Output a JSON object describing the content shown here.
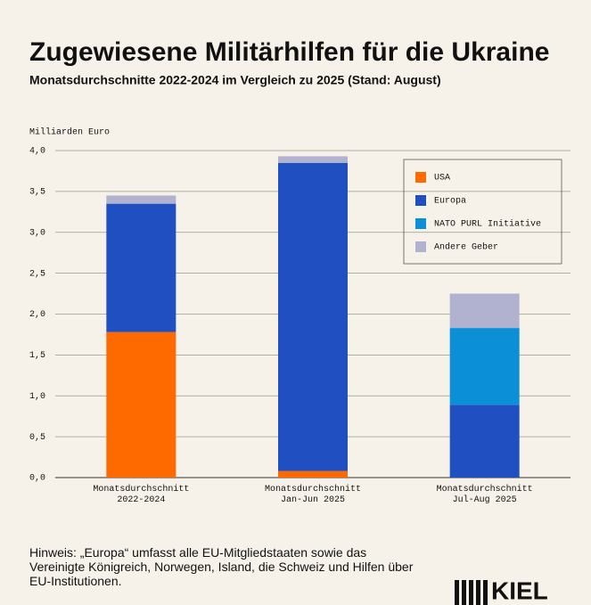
{
  "chart_data": {
    "type": "stacked_bar",
    "title": "Zugewiesene Militärhilfen für die Ukraine",
    "subtitle": "Monatsdurchschnitte 2022-2024 im Vergleich zu 2025 (Stand: August)",
    "y_label": "Milliarden Euro",
    "categories": [
      "Monatsdurchschnitt\n2022-2024",
      "Monatsdurchschnitt\nJan-Jun 2025",
      "Monatsdurchschnitt\nJul-Aug 2025"
    ],
    "series": [
      {
        "name": "USA",
        "color": "#ff6a00",
        "values": [
          1.78,
          0.08,
          0
        ]
      },
      {
        "name": "Europa",
        "color": "#1f4fc0",
        "values": [
          1.57,
          3.77,
          0.89
        ]
      },
      {
        "name": "NATO PURL Initiative",
        "color": "#0b8fd6",
        "values": [
          0,
          0,
          0.94
        ]
      },
      {
        "name": "Andere Geber",
        "color": "#b0b2cf",
        "values": [
          0.1,
          0.08,
          0.42
        ]
      }
    ],
    "ylim": [
      0,
      4
    ],
    "yticks": [
      {
        "value": 0,
        "label": "0,0"
      },
      {
        "value": 0.5,
        "label": "0,5"
      },
      {
        "value": 1,
        "label": "1,0"
      },
      {
        "value": 1.5,
        "label": "1,5"
      },
      {
        "value": 2,
        "label": "2,0"
      },
      {
        "value": 2.5,
        "label": "2,5"
      },
      {
        "value": 3,
        "label": "3,0"
      },
      {
        "value": 3.5,
        "label": "3,5"
      },
      {
        "value": 4,
        "label": "4,0"
      }
    ],
    "grid": true,
    "legend": "upper right",
    "note": "Hinweis: „Europa“ umfasst alle EU-Mitgliedstaaten sowie das Vereinigte Königreich, Norwegen, Island, die Schweiz und Hilfen über EU-Institutionen.",
    "logo": "KIEL"
  }
}
